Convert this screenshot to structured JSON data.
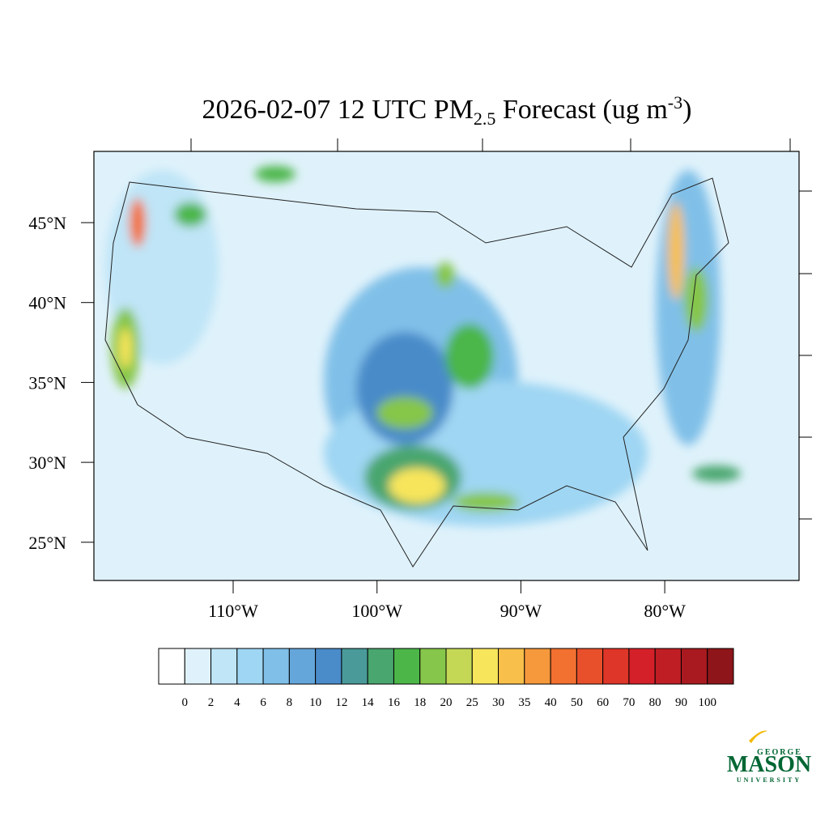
{
  "title": {
    "main": "2026-02-07 12 UTC PM",
    "sub": "2.5",
    "rest": " Forecast (ug m",
    "sup": "-3",
    "end": ")"
  },
  "lat_labels": [
    {
      "value": 45,
      "label": "45°N"
    },
    {
      "value": 40,
      "label": "40°N"
    },
    {
      "value": 35,
      "label": "35°N"
    },
    {
      "value": 30,
      "label": "30°N"
    },
    {
      "value": 25,
      "label": "25°N"
    }
  ],
  "lon_labels": [
    {
      "value": -110,
      "label": "110°W"
    },
    {
      "value": -100,
      "label": "100°W"
    },
    {
      "value": -90,
      "label": "90°W"
    },
    {
      "value": -80,
      "label": "80°W"
    }
  ],
  "colorbar": {
    "levels": [
      0,
      2,
      4,
      6,
      8,
      10,
      12,
      14,
      16,
      18,
      20,
      25,
      30,
      35,
      40,
      50,
      60,
      70,
      80,
      90,
      100
    ],
    "colors": [
      "#ffffff",
      "#dff2fb",
      "#bfe5f7",
      "#9fd6f3",
      "#80c0e8",
      "#64a6da",
      "#4a8bc9",
      "#4a9a9a",
      "#48a66e",
      "#4cb648",
      "#86c64a",
      "#c4d856",
      "#f7e55c",
      "#f8bf4a",
      "#f5993c",
      "#f27030",
      "#e8502c",
      "#de3628",
      "#d42029",
      "#bf1e24",
      "#a81a1f",
      "#8e161a"
    ]
  },
  "logo": {
    "top": "GEORGE",
    "main": "MASON",
    "bottom": "UNIVERSITY"
  }
}
